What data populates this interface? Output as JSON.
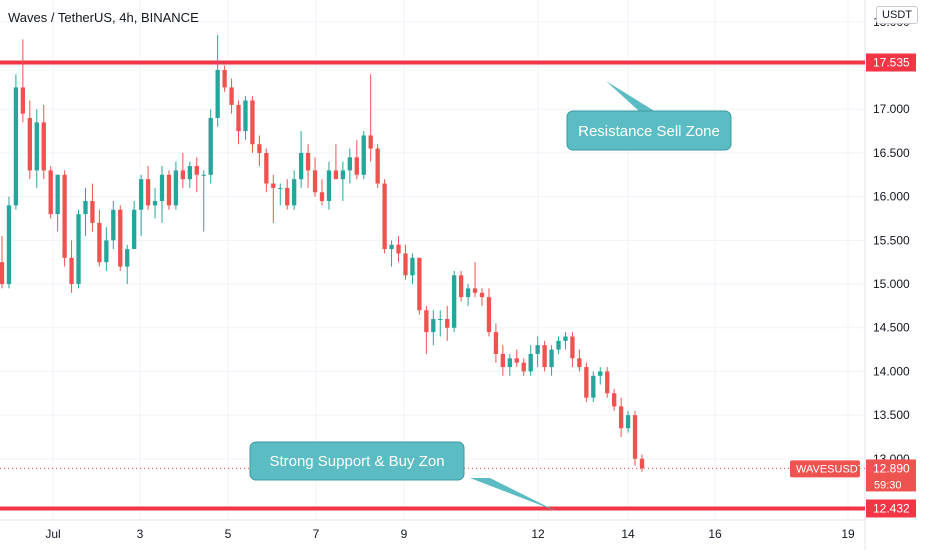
{
  "header": {
    "symbol_title": "Waves / TetherUS, 4h, BINANCE",
    "currency_button": "USDT"
  },
  "price_axis": {
    "ticks": [
      "18.000",
      "17.500",
      "17.000",
      "16.500",
      "16.000",
      "15.500",
      "15.000",
      "14.500",
      "14.000",
      "13.500",
      "13.000"
    ]
  },
  "time_axis": {
    "ticks": [
      "Jul",
      "3",
      "5",
      "7",
      "9",
      "12",
      "14",
      "16",
      "19"
    ]
  },
  "levels": {
    "resistance": {
      "label": "17.535",
      "value": 17.535
    },
    "support": {
      "label": "12.432",
      "value": 12.432
    }
  },
  "last_price": {
    "symbol_tag": "WAVESUSDT",
    "price": "12.890",
    "countdown": "59:30",
    "value": 12.89
  },
  "annotations": {
    "resistance_callout": "Resistance Sell Zone",
    "support_callout": "Strong Support & Buy Zon"
  },
  "colors": {
    "up": "#26a69a",
    "down": "#ef5350",
    "level_line": "#f23645",
    "callout_fill": "#5bbcc3",
    "grid": "#f0f3fa",
    "axis_text": "#131722"
  },
  "chart_data": {
    "type": "candlestick",
    "title": "Waves / TetherUS, 4h, BINANCE",
    "ylim": [
      12.3,
      18.25
    ],
    "x_ticks": [
      "Jul",
      "3",
      "5",
      "7",
      "9",
      "12",
      "14",
      "16",
      "19"
    ],
    "ohlc": [
      [
        15.25,
        15.55,
        14.95,
        15.0
      ],
      [
        15.0,
        16.0,
        14.95,
        15.9
      ],
      [
        15.9,
        17.4,
        15.85,
        17.25
      ],
      [
        17.25,
        17.8,
        16.85,
        16.95
      ],
      [
        16.9,
        17.1,
        16.2,
        16.3
      ],
      [
        16.3,
        17.0,
        16.1,
        16.85
      ],
      [
        16.85,
        17.05,
        16.2,
        16.3
      ],
      [
        16.3,
        16.35,
        15.75,
        15.8
      ],
      [
        15.8,
        16.25,
        15.6,
        16.25
      ],
      [
        16.25,
        16.3,
        15.2,
        15.3
      ],
      [
        15.3,
        15.5,
        14.9,
        15.0
      ],
      [
        15.0,
        15.85,
        14.95,
        15.8
      ],
      [
        15.8,
        16.1,
        15.55,
        15.95
      ],
      [
        15.95,
        16.15,
        15.6,
        15.7
      ],
      [
        15.7,
        15.85,
        15.2,
        15.25
      ],
      [
        15.25,
        15.65,
        15.15,
        15.5
      ],
      [
        15.5,
        15.95,
        15.4,
        15.85
      ],
      [
        15.85,
        15.9,
        15.15,
        15.2
      ],
      [
        15.2,
        15.45,
        15.0,
        15.4
      ],
      [
        15.4,
        15.95,
        15.4,
        15.85
      ],
      [
        15.85,
        16.25,
        15.55,
        16.2
      ],
      [
        16.2,
        16.35,
        15.85,
        15.9
      ],
      [
        15.9,
        16.1,
        15.75,
        15.95
      ],
      [
        15.95,
        16.35,
        15.7,
        16.25
      ],
      [
        16.25,
        16.3,
        15.85,
        15.9
      ],
      [
        15.9,
        16.4,
        15.85,
        16.3
      ],
      [
        16.3,
        16.5,
        16.1,
        16.2
      ],
      [
        16.2,
        16.4,
        16.1,
        16.35
      ],
      [
        16.35,
        16.45,
        16.05,
        16.25
      ],
      [
        16.25,
        16.3,
        15.6,
        16.25
      ],
      [
        16.25,
        17.0,
        16.15,
        16.9
      ],
      [
        16.9,
        17.85,
        16.8,
        17.45
      ],
      [
        17.45,
        17.5,
        17.2,
        17.25
      ],
      [
        17.25,
        17.35,
        16.95,
        17.05
      ],
      [
        17.05,
        17.1,
        16.6,
        16.75
      ],
      [
        16.75,
        17.15,
        16.65,
        17.1
      ],
      [
        17.1,
        17.15,
        16.5,
        16.6
      ],
      [
        16.6,
        16.7,
        16.35,
        16.5
      ],
      [
        16.5,
        16.55,
        16.05,
        16.15
      ],
      [
        16.15,
        16.25,
        15.7,
        16.1
      ],
      [
        16.1,
        16.15,
        15.9,
        16.1
      ],
      [
        16.1,
        16.2,
        15.85,
        15.9
      ],
      [
        15.9,
        16.3,
        15.85,
        16.2
      ],
      [
        16.2,
        16.75,
        16.1,
        16.5
      ],
      [
        16.5,
        16.6,
        16.1,
        16.3
      ],
      [
        16.3,
        16.45,
        16.0,
        16.05
      ],
      [
        16.05,
        16.2,
        15.9,
        15.95
      ],
      [
        15.95,
        16.4,
        15.85,
        16.3
      ],
      [
        16.3,
        16.6,
        16.2,
        16.2
      ],
      [
        16.2,
        16.4,
        15.95,
        16.3
      ],
      [
        16.3,
        16.55,
        16.15,
        16.45
      ],
      [
        16.45,
        16.65,
        16.2,
        16.25
      ],
      [
        16.25,
        16.75,
        16.2,
        16.7
      ],
      [
        16.7,
        17.4,
        16.4,
        16.55
      ],
      [
        16.55,
        16.6,
        16.1,
        16.15
      ],
      [
        16.15,
        16.2,
        15.35,
        15.4
      ],
      [
        15.4,
        15.5,
        15.2,
        15.45
      ],
      [
        15.45,
        15.55,
        15.25,
        15.35
      ],
      [
        15.35,
        15.45,
        15.05,
        15.1
      ],
      [
        15.1,
        15.35,
        15.0,
        15.3
      ],
      [
        15.3,
        15.3,
        14.65,
        14.7
      ],
      [
        14.7,
        14.75,
        14.2,
        14.45
      ],
      [
        14.45,
        14.7,
        14.3,
        14.6
      ],
      [
        14.6,
        14.7,
        14.4,
        14.6
      ],
      [
        14.6,
        14.75,
        14.35,
        14.5
      ],
      [
        14.5,
        15.15,
        14.45,
        15.1
      ],
      [
        15.1,
        15.15,
        14.8,
        14.85
      ],
      [
        14.85,
        15.0,
        14.75,
        14.95
      ],
      [
        14.95,
        15.25,
        14.85,
        14.9
      ],
      [
        14.9,
        14.95,
        14.75,
        14.85
      ],
      [
        14.85,
        14.95,
        14.4,
        14.45
      ],
      [
        14.45,
        14.55,
        14.1,
        14.2
      ],
      [
        14.2,
        14.3,
        13.95,
        14.05
      ],
      [
        14.05,
        14.2,
        13.95,
        14.15
      ],
      [
        14.15,
        14.25,
        14.05,
        14.1
      ],
      [
        14.1,
        14.15,
        13.95,
        14.0
      ],
      [
        14.0,
        14.3,
        13.95,
        14.2
      ],
      [
        14.2,
        14.4,
        14.05,
        14.3
      ],
      [
        14.3,
        14.35,
        14.0,
        14.05
      ],
      [
        14.05,
        14.3,
        13.95,
        14.25
      ],
      [
        14.25,
        14.4,
        14.2,
        14.35
      ],
      [
        14.35,
        14.45,
        14.25,
        14.4
      ],
      [
        14.4,
        14.45,
        14.05,
        14.15
      ],
      [
        14.15,
        14.25,
        14.0,
        14.05
      ],
      [
        14.05,
        14.1,
        13.65,
        13.7
      ],
      [
        13.7,
        14.0,
        13.65,
        13.95
      ],
      [
        13.95,
        14.05,
        13.85,
        14.0
      ],
      [
        14.0,
        14.05,
        13.7,
        13.75
      ],
      [
        13.75,
        13.8,
        13.55,
        13.6
      ],
      [
        13.6,
        13.7,
        13.25,
        13.35
      ],
      [
        13.35,
        13.55,
        13.3,
        13.5
      ],
      [
        13.5,
        13.55,
        12.92,
        13.0
      ],
      [
        13.0,
        13.05,
        12.85,
        12.89
      ]
    ],
    "horizontal_lines": [
      {
        "label": "Resistance",
        "value": 17.535
      },
      {
        "label": "Support",
        "value": 12.432
      }
    ],
    "last_price": 12.89
  }
}
